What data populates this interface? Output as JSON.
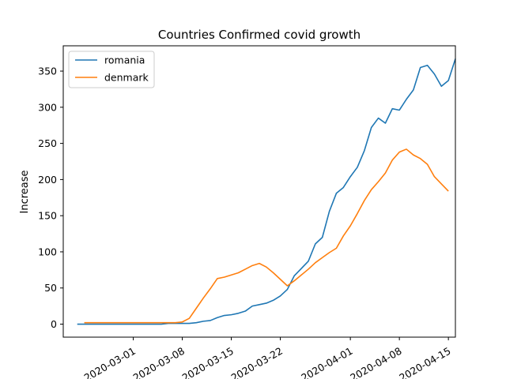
{
  "chart_data": {
    "type": "line",
    "title": "Countries Confirmed covid growth",
    "xlabel": "",
    "ylabel": "Increase",
    "xlim": [
      "2020-02-20",
      "2020-04-16"
    ],
    "ylim": [
      -18,
      385
    ],
    "x_ticks": [
      "2020-03-01",
      "2020-03-08",
      "2020-03-15",
      "2020-03-22",
      "2020-04-01",
      "2020-04-08",
      "2020-04-15"
    ],
    "y_ticks": [
      0,
      50,
      100,
      150,
      200,
      250,
      300,
      350
    ],
    "grid": false,
    "legend_position": "top-left",
    "series": [
      {
        "name": "romania",
        "color": "#1f77b4",
        "points": [
          [
            "2020-02-22",
            0
          ],
          [
            "2020-02-23",
            0
          ],
          [
            "2020-02-24",
            0
          ],
          [
            "2020-02-25",
            0
          ],
          [
            "2020-02-26",
            0
          ],
          [
            "2020-02-27",
            0
          ],
          [
            "2020-02-28",
            0
          ],
          [
            "2020-02-29",
            0
          ],
          [
            "2020-03-01",
            0
          ],
          [
            "2020-03-02",
            0
          ],
          [
            "2020-03-03",
            0
          ],
          [
            "2020-03-04",
            0
          ],
          [
            "2020-03-05",
            0
          ],
          [
            "2020-03-06",
            1
          ],
          [
            "2020-03-07",
            1
          ],
          [
            "2020-03-08",
            1
          ],
          [
            "2020-03-09",
            1
          ],
          [
            "2020-03-10",
            2
          ],
          [
            "2020-03-11",
            4
          ],
          [
            "2020-03-12",
            5
          ],
          [
            "2020-03-13",
            9
          ],
          [
            "2020-03-14",
            12
          ],
          [
            "2020-03-15",
            13
          ],
          [
            "2020-03-16",
            15
          ],
          [
            "2020-03-17",
            18
          ],
          [
            "2020-03-18",
            25
          ],
          [
            "2020-03-19",
            27
          ],
          [
            "2020-03-20",
            29
          ],
          [
            "2020-03-21",
            33
          ],
          [
            "2020-03-22",
            39
          ],
          [
            "2020-03-23",
            48
          ],
          [
            "2020-03-24",
            67
          ],
          [
            "2020-03-25",
            77
          ],
          [
            "2020-03-26",
            87
          ],
          [
            "2020-03-27",
            111
          ],
          [
            "2020-03-28",
            120
          ],
          [
            "2020-03-29",
            156
          ],
          [
            "2020-03-30",
            181
          ],
          [
            "2020-03-31",
            189
          ],
          [
            "2020-04-01",
            204
          ],
          [
            "2020-04-02",
            217
          ],
          [
            "2020-04-03",
            240
          ],
          [
            "2020-04-04",
            272
          ],
          [
            "2020-04-05",
            285
          ],
          [
            "2020-04-06",
            278
          ],
          [
            "2020-04-07",
            298
          ],
          [
            "2020-04-08",
            296
          ],
          [
            "2020-04-09",
            311
          ],
          [
            "2020-04-10",
            324
          ],
          [
            "2020-04-11",
            355
          ],
          [
            "2020-04-12",
            358
          ],
          [
            "2020-04-13",
            346
          ],
          [
            "2020-04-14",
            329
          ],
          [
            "2020-04-15",
            337
          ],
          [
            "2020-04-16",
            367
          ]
        ]
      },
      {
        "name": "denmark",
        "color": "#ff7f0e",
        "points": [
          [
            "2020-02-23",
            2
          ],
          [
            "2020-02-24",
            2
          ],
          [
            "2020-02-25",
            2
          ],
          [
            "2020-02-26",
            2
          ],
          [
            "2020-02-27",
            2
          ],
          [
            "2020-02-28",
            2
          ],
          [
            "2020-02-29",
            2
          ],
          [
            "2020-03-01",
            2
          ],
          [
            "2020-03-02",
            2
          ],
          [
            "2020-03-03",
            2
          ],
          [
            "2020-03-04",
            2
          ],
          [
            "2020-03-05",
            2
          ],
          [
            "2020-03-06",
            2
          ],
          [
            "2020-03-07",
            2
          ],
          [
            "2020-03-08",
            3
          ],
          [
            "2020-03-09",
            8
          ],
          [
            "2020-03-10",
            22
          ],
          [
            "2020-03-11",
            36
          ],
          [
            "2020-03-12",
            49
          ],
          [
            "2020-03-13",
            63
          ],
          [
            "2020-03-14",
            65
          ],
          [
            "2020-03-15",
            68
          ],
          [
            "2020-03-16",
            71
          ],
          [
            "2020-03-17",
            76
          ],
          [
            "2020-03-18",
            81
          ],
          [
            "2020-03-19",
            84
          ],
          [
            "2020-03-20",
            79
          ],
          [
            "2020-03-21",
            71
          ],
          [
            "2020-03-22",
            62
          ],
          [
            "2020-03-23",
            53
          ],
          [
            "2020-03-24",
            60
          ],
          [
            "2020-03-25",
            68
          ],
          [
            "2020-03-26",
            76
          ],
          [
            "2020-03-27",
            85
          ],
          [
            "2020-03-28",
            92
          ],
          [
            "2020-03-29",
            99
          ],
          [
            "2020-03-30",
            105
          ],
          [
            "2020-03-31",
            122
          ],
          [
            "2020-04-01",
            136
          ],
          [
            "2020-04-02",
            153
          ],
          [
            "2020-04-03",
            171
          ],
          [
            "2020-04-04",
            186
          ],
          [
            "2020-04-05",
            197
          ],
          [
            "2020-04-06",
            209
          ],
          [
            "2020-04-07",
            227
          ],
          [
            "2020-04-08",
            238
          ],
          [
            "2020-04-09",
            242
          ],
          [
            "2020-04-10",
            234
          ],
          [
            "2020-04-11",
            229
          ],
          [
            "2020-04-12",
            221
          ],
          [
            "2020-04-13",
            204
          ],
          [
            "2020-04-14",
            194
          ],
          [
            "2020-04-15",
            184
          ]
        ]
      }
    ]
  }
}
